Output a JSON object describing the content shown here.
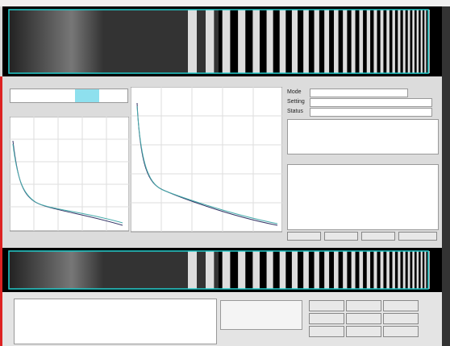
{
  "panel": {
    "mode_label": "Mode",
    "setting_label": "Setting",
    "status_label": "Status"
  }
}
